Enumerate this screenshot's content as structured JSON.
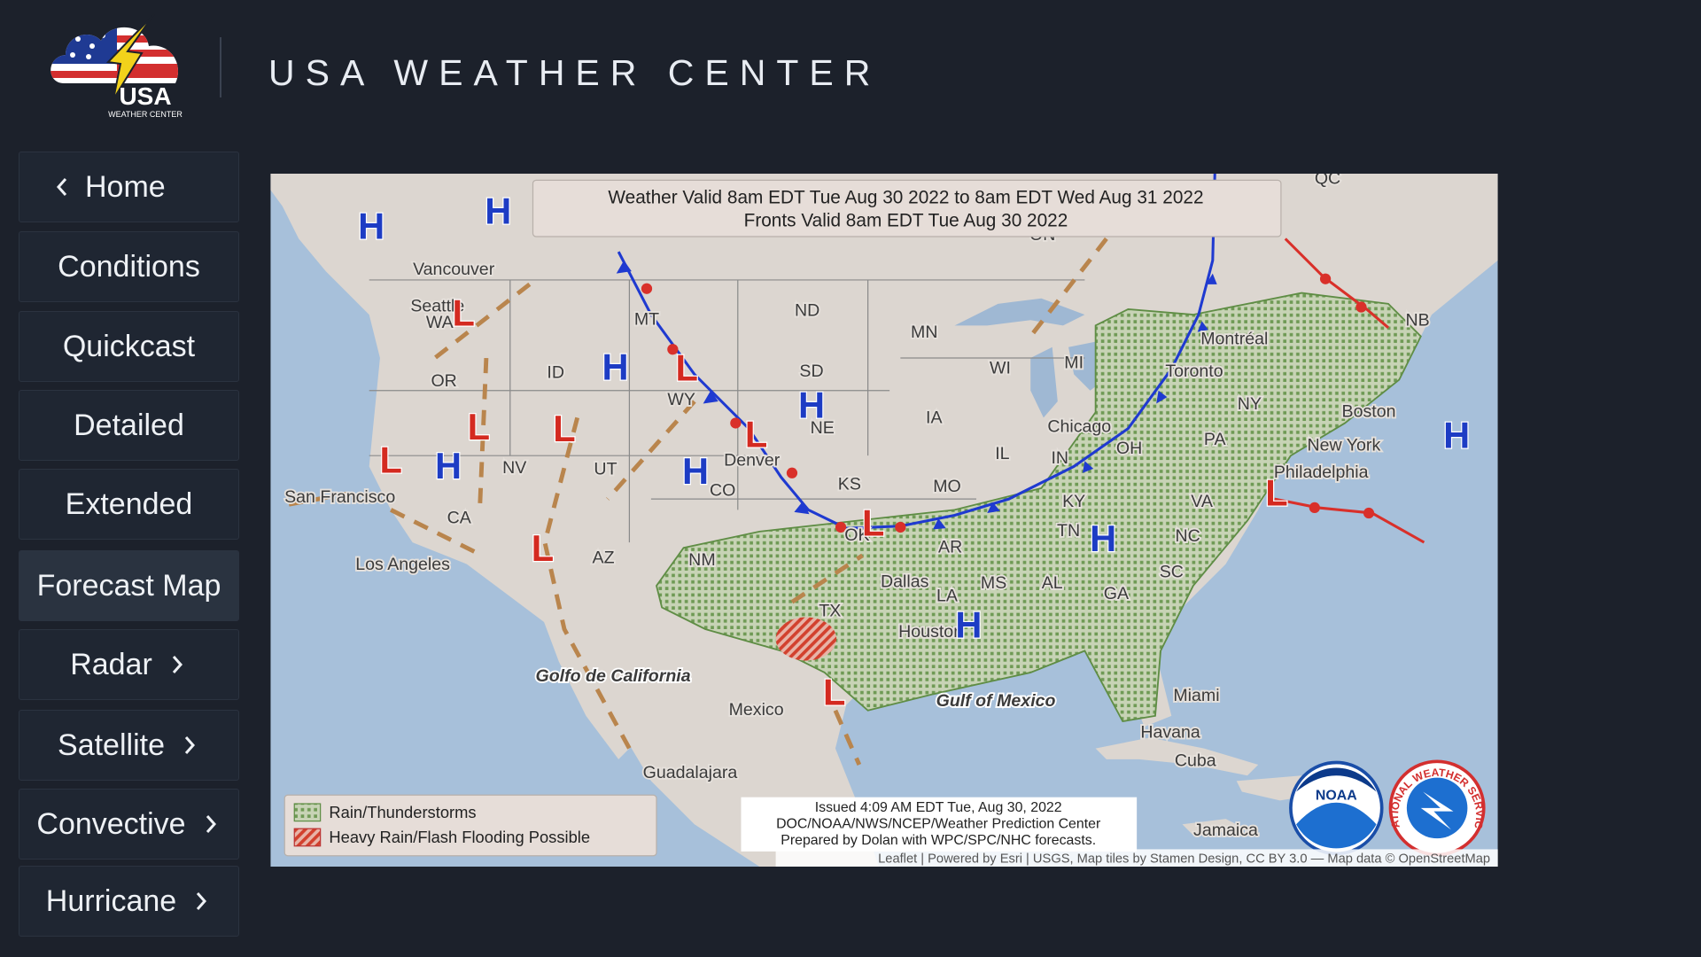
{
  "header": {
    "logo_text": "USA",
    "logo_subtext": "WEATHER CENTER",
    "title": "USA WEATHER CENTER"
  },
  "nav": [
    "Home",
    "Conditions",
    "Quickcast",
    "Detailed",
    "Extended",
    "Forecast Map",
    "Radar",
    "Satellite",
    "Convective",
    "Hurricane"
  ],
  "map": {
    "valid_lines": [
      "Weather Valid 8am EDT Tue Aug 30 2022 to 8am EDT Wed Aug 31 2022",
      "Fronts Valid 8am EDT Tue Aug 30 2022"
    ],
    "place_labels": [
      "Vancouver",
      "Seattle",
      "WA",
      "MT",
      "ND",
      "MN",
      "WI",
      "SD",
      "OR",
      "ID",
      "WY",
      "NE",
      "IA",
      "IL",
      "IN",
      "OH",
      "MI",
      "PA",
      "NY",
      "NV",
      "UT",
      "CO",
      "KS",
      "MO",
      "KY",
      "VA",
      "CA",
      "TN",
      "NC",
      "AZ",
      "NM",
      "OK",
      "AR",
      "SC",
      "MS",
      "AL",
      "GA",
      "LA",
      "TX",
      "Chicago",
      "Toronto",
      "Montréal",
      "New York",
      "Philadelphia",
      "Boston",
      "Denver",
      "San Francisco",
      "Los Angeles",
      "Dallas",
      "Houston",
      "Miami",
      "Mexico",
      "Golfo de California",
      "Gulf of Mexico",
      "Guadalajara",
      "Havana",
      "Cuba",
      "Jamaica",
      "QC",
      "ON",
      "NB"
    ],
    "pressure_centers": [
      "H",
      "H",
      "H",
      "H",
      "H",
      "H",
      "H",
      "H",
      "H",
      "L",
      "L",
      "L",
      "L",
      "L",
      "L",
      "L",
      "L",
      "L",
      "L"
    ],
    "legend": [
      "Rain/Thunderstorms",
      "Heavy Rain/Flash Flooding Possible"
    ],
    "issued_lines": [
      "Issued 4:09 AM EDT Tue, Aug 30, 2022",
      "DOC/NOAA/NWS/NCEP/Weather Prediction Center",
      "Prepared by Dolan with WPC/SPC/NHC forecasts."
    ],
    "attribution": "Leaflet | Powered by Esri | USGS, Map tiles by Stamen Design, CC BY 3.0 — Map data © OpenStreetMap",
    "logos": [
      "NOAA",
      "NATIONAL WEATHER SERVICE"
    ]
  }
}
